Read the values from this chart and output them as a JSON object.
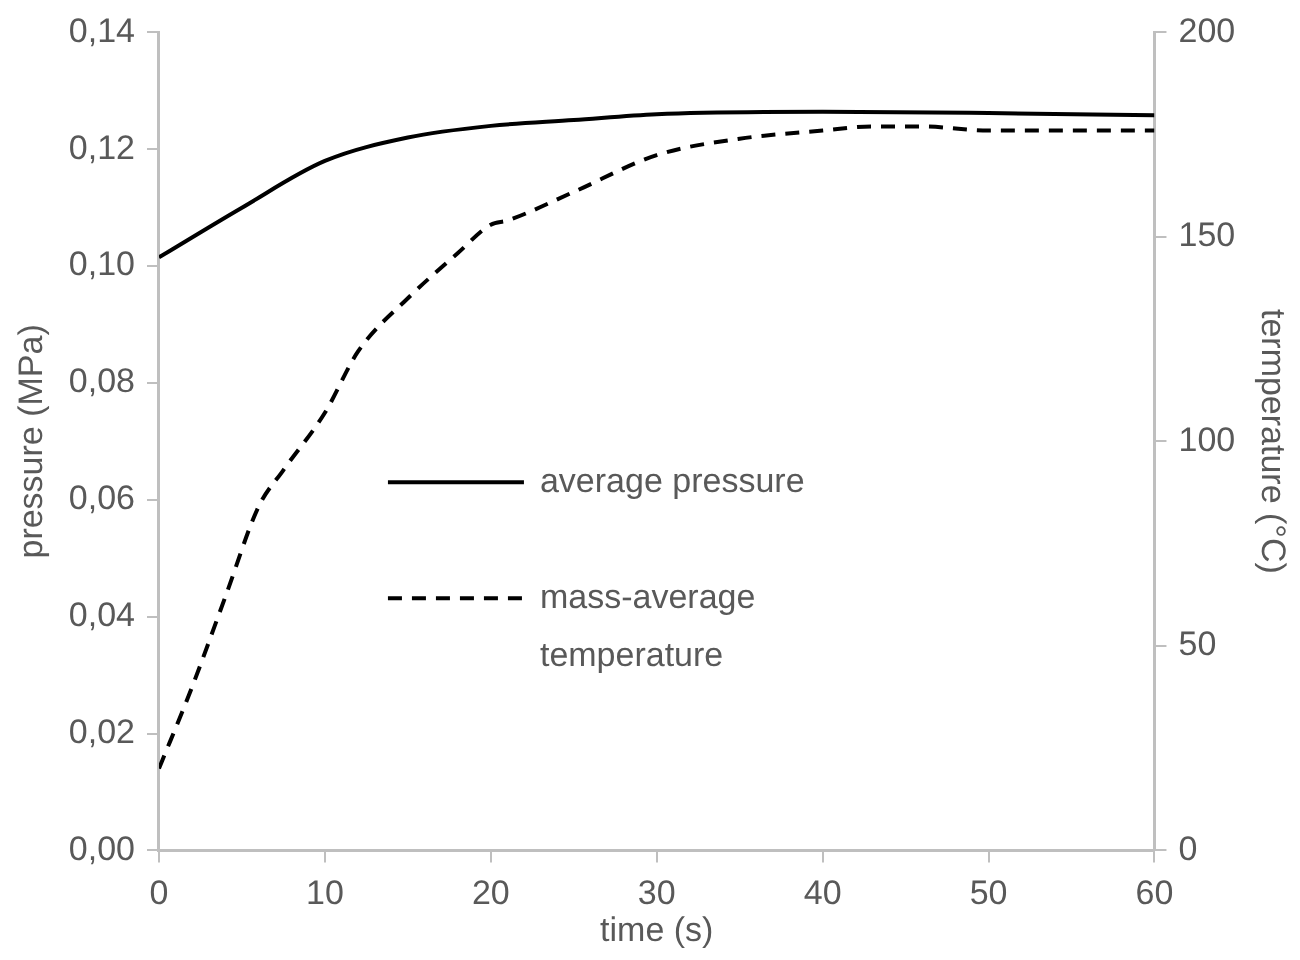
{
  "chart_data": {
    "type": "line",
    "xlabel": "time (s)",
    "ylabel": "pressure (MPa)",
    "y2label": "termperature (°C)",
    "xlim": [
      0,
      60
    ],
    "xticks": [
      0,
      10,
      20,
      30,
      40,
      50,
      60
    ],
    "ylim": [
      0,
      0.14
    ],
    "yticks": [
      {
        "value": 0,
        "label": "0,00"
      },
      {
        "value": 0.02,
        "label": "0,02"
      },
      {
        "value": 0.04,
        "label": "0,04"
      },
      {
        "value": 0.06,
        "label": "0,06"
      },
      {
        "value": 0.08,
        "label": "0,08"
      },
      {
        "value": 0.1,
        "label": "0,10"
      },
      {
        "value": 0.12,
        "label": "0,12"
      },
      {
        "value": 0.14,
        "label": "0,14"
      }
    ],
    "y2lim": [
      0,
      200
    ],
    "y2ticks": [
      0,
      50,
      100,
      150,
      200
    ],
    "grid": false,
    "legend": "left",
    "marker": "none",
    "series": [
      {
        "name": "average pressure",
        "color": "#000000",
        "line_style": "solid",
        "x": [
          0,
          5,
          10,
          15,
          20,
          25,
          30,
          40,
          50,
          60
        ],
        "values": [
          0.1015,
          0.11,
          0.118,
          0.122,
          0.124,
          0.125,
          0.126,
          0.1264,
          0.1262,
          0.1258
        ]
      },
      {
        "name": "mass-average temperature",
        "color": "#000000",
        "line_style": "dashed",
        "axis": "y2",
        "x": [
          0,
          2,
          4,
          6,
          7.5,
          10,
          12,
          15,
          18,
          20,
          21,
          25,
          30,
          35,
          40,
          43,
          46,
          50,
          55,
          60
        ],
        "values": [
          20,
          40,
          62,
          84,
          93,
          107,
          122,
          135,
          146,
          153,
          154,
          161,
          170,
          174,
          176,
          177,
          177,
          176,
          176,
          176
        ]
      }
    ]
  }
}
